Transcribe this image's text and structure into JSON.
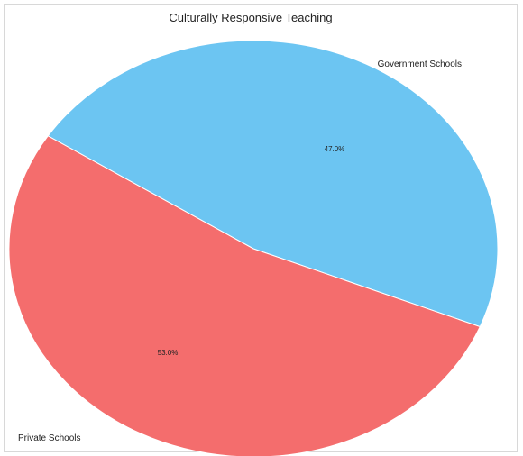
{
  "chart_data": {
    "type": "pie",
    "title": "Culturally Responsive Teaching",
    "slices": [
      {
        "label": "Government Schools",
        "value": 47.0,
        "display": "47.0%",
        "color": "#6cc5f2"
      },
      {
        "label": "Private Schools",
        "value": 53.0,
        "display": "53.0%",
        "color": "#f46d6d"
      }
    ]
  }
}
